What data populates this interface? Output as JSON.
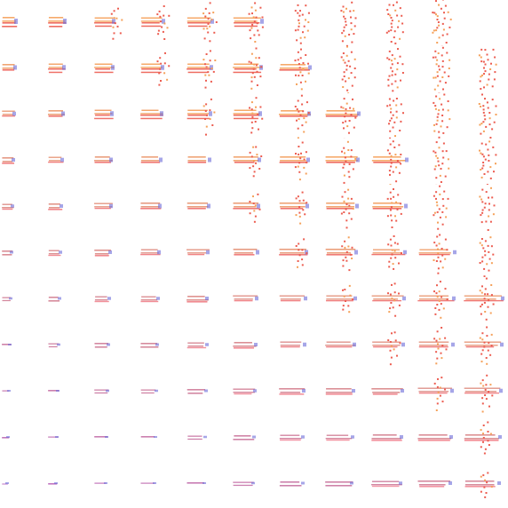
{
  "sheet": {
    "rows": 11,
    "cols": 11,
    "colors": {
      "background": "#ffffff",
      "stroke_orange": "#f5a15a",
      "stroke_red": "#ec5c50",
      "stroke_pink": "#f7b2d8",
      "stroke_purple": "#b05cc8",
      "accent_blue": "#6a6ad8",
      "highlight": "#ffffff"
    },
    "empty_cells": [
      [
        0,
        10
      ]
    ]
  }
}
